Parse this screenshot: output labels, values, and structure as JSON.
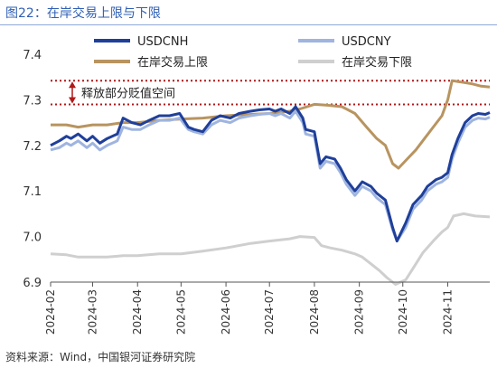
{
  "figure": {
    "title": "图22：在岸交易上限与下限",
    "source": "资料来源：Wind，中国银河证券研究院",
    "annotation": "释放部分贬值空间"
  },
  "chart_data": {
    "type": "line",
    "ylim": [
      6.9,
      7.4
    ],
    "yticks": [
      6.9,
      7.0,
      7.1,
      7.2,
      7.3,
      7.4
    ],
    "ytick_labels": [
      "6.9",
      "7.0",
      "7.1",
      "7.2",
      "7.3",
      "7.4"
    ],
    "xlim": [
      "2024-02-01",
      "2024-11-30"
    ],
    "xticks": [
      "2024-02-01",
      "2024-03-01",
      "2024-04-01",
      "2024-05-01",
      "2024-06-01",
      "2024-07-01",
      "2024-08-01",
      "2024-09-01",
      "2024-10-01",
      "2024-11-01"
    ],
    "xtick_labels": [
      "2024-02",
      "2024-03",
      "2024-04",
      "2024-05",
      "2024-06",
      "2024-07",
      "2024-08",
      "2024-09",
      "2024-10",
      "2024-11"
    ],
    "reference_lines": [
      7.342,
      7.29
    ],
    "legend_position": "top",
    "series": [
      {
        "name": "USDCNH",
        "color": "#1f3f9a",
        "points": [
          [
            "2024-02-01",
            7.2
          ],
          [
            "2024-02-07",
            7.21
          ],
          [
            "2024-02-12",
            7.22
          ],
          [
            "2024-02-15",
            7.215
          ],
          [
            "2024-02-20",
            7.225
          ],
          [
            "2024-02-26",
            7.21
          ],
          [
            "2024-03-01",
            7.22
          ],
          [
            "2024-03-06",
            7.205
          ],
          [
            "2024-03-11",
            7.215
          ],
          [
            "2024-03-18",
            7.225
          ],
          [
            "2024-03-22",
            7.26
          ],
          [
            "2024-03-28",
            7.25
          ],
          [
            "2024-04-03",
            7.245
          ],
          [
            "2024-04-09",
            7.255
          ],
          [
            "2024-04-16",
            7.265
          ],
          [
            "2024-04-23",
            7.265
          ],
          [
            "2024-04-30",
            7.27
          ],
          [
            "2024-05-06",
            7.24
          ],
          [
            "2024-05-10",
            7.235
          ],
          [
            "2024-05-16",
            7.23
          ],
          [
            "2024-05-22",
            7.255
          ],
          [
            "2024-05-28",
            7.265
          ],
          [
            "2024-06-04",
            7.26
          ],
          [
            "2024-06-10",
            7.27
          ],
          [
            "2024-06-18",
            7.275
          ],
          [
            "2024-06-24",
            7.278
          ],
          [
            "2024-07-01",
            7.28
          ],
          [
            "2024-07-05",
            7.275
          ],
          [
            "2024-07-09",
            7.28
          ],
          [
            "2024-07-15",
            7.27
          ],
          [
            "2024-07-19",
            7.285
          ],
          [
            "2024-07-24",
            7.26
          ],
          [
            "2024-07-26",
            7.235
          ],
          [
            "2024-08-01",
            7.23
          ],
          [
            "2024-08-05",
            7.16
          ],
          [
            "2024-08-09",
            7.175
          ],
          [
            "2024-08-15",
            7.17
          ],
          [
            "2024-08-19",
            7.15
          ],
          [
            "2024-08-23",
            7.125
          ],
          [
            "2024-08-29",
            7.1
          ],
          [
            "2024-09-03",
            7.12
          ],
          [
            "2024-09-09",
            7.11
          ],
          [
            "2024-09-13",
            7.095
          ],
          [
            "2024-09-19",
            7.08
          ],
          [
            "2024-09-24",
            7.02
          ],
          [
            "2024-09-27",
            6.99
          ],
          [
            "2024-10-03",
            7.03
          ],
          [
            "2024-10-08",
            7.07
          ],
          [
            "2024-10-14",
            7.09
          ],
          [
            "2024-10-18",
            7.11
          ],
          [
            "2024-10-24",
            7.125
          ],
          [
            "2024-10-28",
            7.13
          ],
          [
            "2024-11-01",
            7.14
          ],
          [
            "2024-11-04",
            7.18
          ],
          [
            "2024-11-08",
            7.215
          ],
          [
            "2024-11-13",
            7.25
          ],
          [
            "2024-11-18",
            7.265
          ],
          [
            "2024-11-22",
            7.27
          ],
          [
            "2024-11-27",
            7.268
          ],
          [
            "2024-11-30",
            7.272
          ]
        ]
      },
      {
        "name": "USDCNY",
        "color": "#9fb5e0",
        "points": [
          [
            "2024-02-01",
            7.19
          ],
          [
            "2024-02-07",
            7.195
          ],
          [
            "2024-02-12",
            7.205
          ],
          [
            "2024-02-15",
            7.2
          ],
          [
            "2024-02-20",
            7.21
          ],
          [
            "2024-02-26",
            7.195
          ],
          [
            "2024-03-01",
            7.205
          ],
          [
            "2024-03-06",
            7.19
          ],
          [
            "2024-03-11",
            7.2
          ],
          [
            "2024-03-18",
            7.21
          ],
          [
            "2024-03-22",
            7.24
          ],
          [
            "2024-03-28",
            7.235
          ],
          [
            "2024-04-03",
            7.235
          ],
          [
            "2024-04-09",
            7.245
          ],
          [
            "2024-04-16",
            7.255
          ],
          [
            "2024-04-23",
            7.255
          ],
          [
            "2024-04-30",
            7.26
          ],
          [
            "2024-05-06",
            7.235
          ],
          [
            "2024-05-10",
            7.23
          ],
          [
            "2024-05-16",
            7.225
          ],
          [
            "2024-05-22",
            7.245
          ],
          [
            "2024-05-28",
            7.255
          ],
          [
            "2024-06-04",
            7.25
          ],
          [
            "2024-06-10",
            7.26
          ],
          [
            "2024-06-18",
            7.265
          ],
          [
            "2024-06-24",
            7.268
          ],
          [
            "2024-07-01",
            7.27
          ],
          [
            "2024-07-05",
            7.265
          ],
          [
            "2024-07-09",
            7.27
          ],
          [
            "2024-07-15",
            7.26
          ],
          [
            "2024-07-19",
            7.275
          ],
          [
            "2024-07-24",
            7.25
          ],
          [
            "2024-07-26",
            7.225
          ],
          [
            "2024-08-01",
            7.22
          ],
          [
            "2024-08-05",
            7.15
          ],
          [
            "2024-08-09",
            7.165
          ],
          [
            "2024-08-15",
            7.16
          ],
          [
            "2024-08-19",
            7.14
          ],
          [
            "2024-08-23",
            7.115
          ],
          [
            "2024-08-29",
            7.09
          ],
          [
            "2024-09-03",
            7.11
          ],
          [
            "2024-09-09",
            7.1
          ],
          [
            "2024-09-13",
            7.085
          ],
          [
            "2024-09-19",
            7.07
          ],
          [
            "2024-09-24",
            7.015
          ],
          [
            "2024-09-27",
            6.99
          ],
          [
            "2024-10-03",
            7.02
          ],
          [
            "2024-10-08",
            7.06
          ],
          [
            "2024-10-14",
            7.08
          ],
          [
            "2024-10-18",
            7.1
          ],
          [
            "2024-10-24",
            7.115
          ],
          [
            "2024-10-28",
            7.12
          ],
          [
            "2024-11-01",
            7.13
          ],
          [
            "2024-11-04",
            7.17
          ],
          [
            "2024-11-08",
            7.205
          ],
          [
            "2024-11-13",
            7.24
          ],
          [
            "2024-11-18",
            7.255
          ],
          [
            "2024-11-22",
            7.26
          ],
          [
            "2024-11-27",
            7.258
          ],
          [
            "2024-11-30",
            7.262
          ]
        ]
      },
      {
        "name": "在岸交易上限",
        "color": "#b89460",
        "points": [
          [
            "2024-02-01",
            7.245
          ],
          [
            "2024-02-12",
            7.245
          ],
          [
            "2024-02-20",
            7.24
          ],
          [
            "2024-03-01",
            7.245
          ],
          [
            "2024-03-11",
            7.245
          ],
          [
            "2024-03-22",
            7.25
          ],
          [
            "2024-04-01",
            7.25
          ],
          [
            "2024-04-16",
            7.255
          ],
          [
            "2024-05-01",
            7.258
          ],
          [
            "2024-05-16",
            7.26
          ],
          [
            "2024-06-01",
            7.265
          ],
          [
            "2024-06-18",
            7.268
          ],
          [
            "2024-07-01",
            7.27
          ],
          [
            "2024-07-15",
            7.275
          ],
          [
            "2024-07-22",
            7.28
          ],
          [
            "2024-08-01",
            7.29
          ],
          [
            "2024-08-10",
            7.288
          ],
          [
            "2024-08-20",
            7.285
          ],
          [
            "2024-08-29",
            7.27
          ],
          [
            "2024-09-06",
            7.24
          ],
          [
            "2024-09-13",
            7.215
          ],
          [
            "2024-09-19",
            7.2
          ],
          [
            "2024-09-24",
            7.16
          ],
          [
            "2024-09-28",
            7.15
          ],
          [
            "2024-10-04",
            7.17
          ],
          [
            "2024-10-10",
            7.19
          ],
          [
            "2024-10-16",
            7.215
          ],
          [
            "2024-10-22",
            7.24
          ],
          [
            "2024-10-28",
            7.265
          ],
          [
            "2024-11-01",
            7.3
          ],
          [
            "2024-11-04",
            7.342
          ],
          [
            "2024-11-12",
            7.338
          ],
          [
            "2024-11-18",
            7.335
          ],
          [
            "2024-11-24",
            7.33
          ],
          [
            "2024-11-30",
            7.328
          ]
        ]
      },
      {
        "name": "在岸交易下限",
        "color": "#cfcfcf",
        "points": [
          [
            "2024-02-01",
            6.962
          ],
          [
            "2024-02-12",
            6.96
          ],
          [
            "2024-02-20",
            6.955
          ],
          [
            "2024-03-01",
            6.955
          ],
          [
            "2024-03-11",
            6.955
          ],
          [
            "2024-03-22",
            6.958
          ],
          [
            "2024-04-01",
            6.958
          ],
          [
            "2024-04-16",
            6.962
          ],
          [
            "2024-05-01",
            6.962
          ],
          [
            "2024-05-16",
            6.968
          ],
          [
            "2024-06-01",
            6.975
          ],
          [
            "2024-06-18",
            6.985
          ],
          [
            "2024-07-01",
            6.99
          ],
          [
            "2024-07-15",
            6.995
          ],
          [
            "2024-07-22",
            7.0
          ],
          [
            "2024-08-01",
            6.998
          ],
          [
            "2024-08-06",
            6.98
          ],
          [
            "2024-08-12",
            6.975
          ],
          [
            "2024-08-20",
            6.97
          ],
          [
            "2024-08-29",
            6.962
          ],
          [
            "2024-09-03",
            6.955
          ],
          [
            "2024-09-09",
            6.94
          ],
          [
            "2024-09-15",
            6.925
          ],
          [
            "2024-09-20",
            6.91
          ],
          [
            "2024-09-26",
            6.895
          ],
          [
            "2024-10-03",
            6.905
          ],
          [
            "2024-10-09",
            6.935
          ],
          [
            "2024-10-15",
            6.965
          ],
          [
            "2024-10-22",
            6.99
          ],
          [
            "2024-10-28",
            7.01
          ],
          [
            "2024-11-01",
            7.02
          ],
          [
            "2024-11-05",
            7.045
          ],
          [
            "2024-11-12",
            7.05
          ],
          [
            "2024-11-20",
            7.045
          ],
          [
            "2024-11-30",
            7.043
          ]
        ]
      }
    ]
  }
}
